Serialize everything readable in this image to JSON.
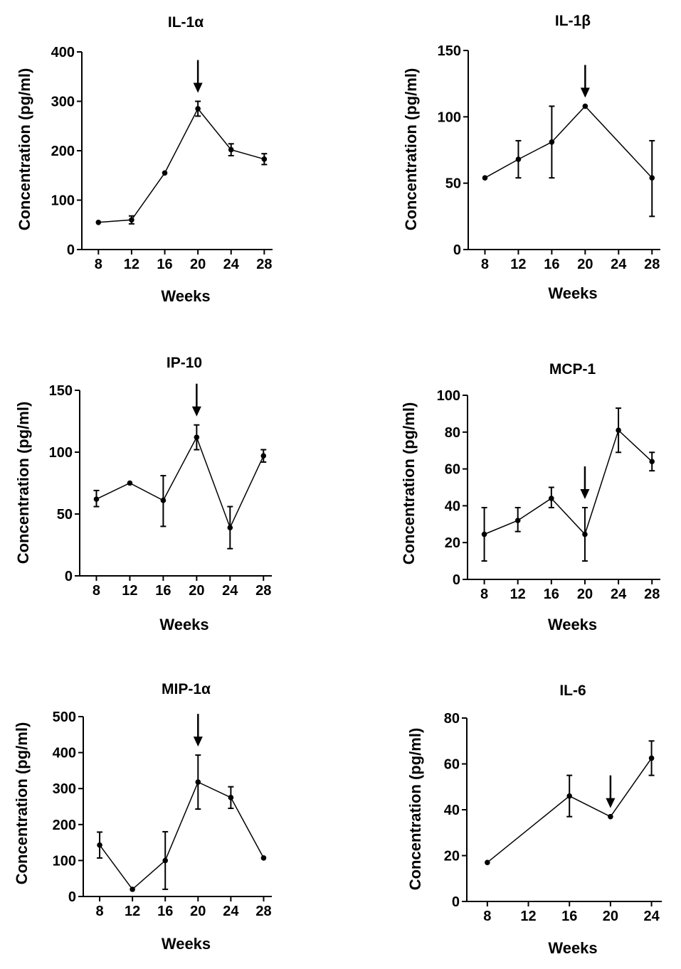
{
  "figure": {
    "colors": {
      "ink": "#000000",
      "background": "#ffffff"
    }
  },
  "chart_data": [
    {
      "type": "line",
      "title": "IL-1α",
      "xlabel": "Weeks",
      "ylabel": "Concentration (pg/ml)",
      "x_ticks": [
        "8",
        "12",
        "16",
        "20",
        "24",
        "28"
      ],
      "y_ticks": [
        "0",
        "100",
        "200",
        "300",
        "400"
      ],
      "xlim": [
        6,
        29
      ],
      "ylim": [
        0,
        400
      ],
      "x": [
        8,
        12,
        16,
        20,
        24,
        28
      ],
      "values": [
        55,
        60,
        155,
        285,
        202,
        183
      ],
      "err_low": [
        55,
        52,
        155,
        270,
        190,
        172
      ],
      "err_high": [
        55,
        68,
        155,
        300,
        214,
        194
      ],
      "arrow_at_week": 20
    },
    {
      "type": "line",
      "title": "IL-1β",
      "xlabel": "Weeks",
      "ylabel": "Concentration (pg/ml)",
      "x_ticks": [
        "8",
        "12",
        "16",
        "20",
        "24",
        "28"
      ],
      "y_ticks": [
        "0",
        "50",
        "100",
        "150"
      ],
      "xlim": [
        6,
        29
      ],
      "ylim": [
        0,
        150
      ],
      "x": [
        8,
        12,
        16,
        20,
        28
      ],
      "values": [
        54,
        68,
        81,
        108,
        54
      ],
      "err_low": [
        54,
        54,
        54,
        108,
        25
      ],
      "err_high": [
        54,
        82,
        108,
        108,
        82
      ],
      "arrow_at_week": 20
    },
    {
      "type": "line",
      "title": "IP-10",
      "xlabel": "Weeks",
      "ylabel": "Concentration (pg/ml)",
      "x_ticks": [
        "8",
        "12",
        "16",
        "20",
        "24",
        "28"
      ],
      "y_ticks": [
        "0",
        "50",
        "100",
        "150"
      ],
      "xlim": [
        6,
        29
      ],
      "ylim": [
        0,
        150
      ],
      "x": [
        8,
        12,
        16,
        20,
        24,
        28
      ],
      "values": [
        62,
        75,
        61,
        112,
        39,
        97
      ],
      "err_low": [
        56,
        75,
        40,
        102,
        22,
        92
      ],
      "err_high": [
        69,
        75,
        81,
        122,
        56,
        102
      ],
      "arrow_at_week": 20
    },
    {
      "type": "line",
      "title": "MCP-1",
      "xlabel": "Weeks",
      "ylabel": "Concentration (pg/ml)",
      "x_ticks": [
        "8",
        "12",
        "16",
        "20",
        "24",
        "28"
      ],
      "y_ticks": [
        "0",
        "20",
        "40",
        "60",
        "80",
        "100"
      ],
      "xlim": [
        6,
        29
      ],
      "ylim": [
        0,
        100
      ],
      "x": [
        8,
        12,
        16,
        20,
        24,
        28
      ],
      "values": [
        24.5,
        32,
        44,
        24.5,
        81,
        64
      ],
      "err_low": [
        10,
        26,
        39,
        10,
        69,
        59
      ],
      "err_high": [
        39,
        39,
        50,
        39,
        93,
        69
      ],
      "arrow_at_week": 20
    },
    {
      "type": "line",
      "title": "MIP-1α",
      "xlabel": "Weeks",
      "ylabel": "Concentration (pg/ml)",
      "x_ticks": [
        "8",
        "12",
        "16",
        "20",
        "24",
        "28"
      ],
      "y_ticks": [
        "0",
        "100",
        "200",
        "300",
        "400",
        "500"
      ],
      "xlim": [
        6,
        29
      ],
      "ylim": [
        0,
        500
      ],
      "x": [
        8,
        12,
        16,
        20,
        24,
        28
      ],
      "values": [
        143,
        20,
        100,
        318,
        275,
        107
      ],
      "err_low": [
        107,
        20,
        20,
        243,
        245,
        107
      ],
      "err_high": [
        179,
        20,
        180,
        393,
        305,
        107
      ],
      "arrow_at_week": 20
    },
    {
      "type": "line",
      "title": "IL-6",
      "xlabel": "Weeks",
      "ylabel": "Concentration (pg/ml)",
      "x_ticks": [
        "8",
        "12",
        "16",
        "20",
        "24"
      ],
      "y_ticks": [
        "0",
        "20",
        "40",
        "60",
        "80"
      ],
      "xlim": [
        6,
        25
      ],
      "ylim": [
        0,
        80
      ],
      "x": [
        8,
        16,
        20,
        24
      ],
      "values": [
        17,
        46,
        37,
        62.5
      ],
      "err_low": [
        17,
        37,
        37,
        55
      ],
      "err_high": [
        17,
        55,
        37,
        70
      ],
      "arrow_at_week": 20
    }
  ]
}
